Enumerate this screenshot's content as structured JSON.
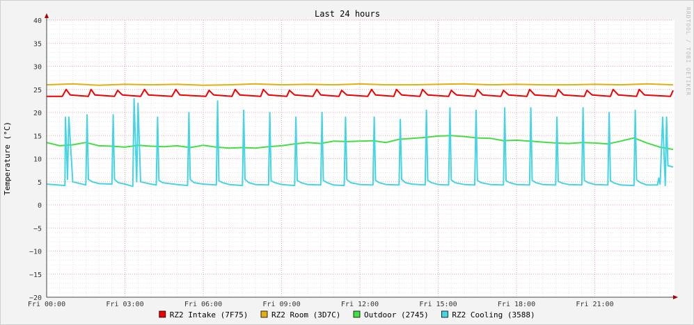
{
  "chart_data": {
    "type": "line",
    "title": "Last 24 hours",
    "ylabel": "Temperature (°C)",
    "watermark": "RRDTOOL / TOBI OETIKER",
    "ylim": [
      -20,
      40
    ],
    "yticks": [
      40,
      35,
      30,
      25,
      20,
      15,
      10,
      5,
      0,
      -5,
      -10,
      -15,
      -20
    ],
    "xlim_hours": [
      0,
      24
    ],
    "xticks": [
      {
        "hour": 0,
        "label": "Fri 00:00"
      },
      {
        "hour": 3,
        "label": "Fri 03:00"
      },
      {
        "hour": 6,
        "label": "Fri 06:00"
      },
      {
        "hour": 9,
        "label": "Fri 09:00"
      },
      {
        "hour": 12,
        "label": "Fri 12:00"
      },
      {
        "hour": 15,
        "label": "Fri 15:00"
      },
      {
        "hour": 18,
        "label": "Fri 18:00"
      },
      {
        "hour": 21,
        "label": "Fri 21:00"
      }
    ],
    "grid": true,
    "legend_position": "bottom",
    "series": [
      {
        "name": "RZ2 Intake (7F75)",
        "color": "#ee0000",
        "x": [
          0,
          0.6,
          0.75,
          0.9,
          1.6,
          1.7,
          1.85,
          2.6,
          2.72,
          2.9,
          3.6,
          3.75,
          3.9,
          4.8,
          4.95,
          5.1,
          6.1,
          6.22,
          6.4,
          7.1,
          7.22,
          7.4,
          8.2,
          8.3,
          8.5,
          9.2,
          9.3,
          9.5,
          10.2,
          10.35,
          10.5,
          11.2,
          11.3,
          11.5,
          12.3,
          12.45,
          12.6,
          13.3,
          13.4,
          13.6,
          14.3,
          14.4,
          14.6,
          15.4,
          15.5,
          15.7,
          16.4,
          16.5,
          16.7,
          17.4,
          17.5,
          17.7,
          18.4,
          18.5,
          18.7,
          19.5,
          19.6,
          19.8,
          20.6,
          20.7,
          20.9,
          21.6,
          21.7,
          21.9,
          22.6,
          22.7,
          22.9,
          23.9,
          24
        ],
        "y": [
          23.5,
          23.5,
          25,
          23.8,
          23.5,
          25,
          23.8,
          23.5,
          24.8,
          23.8,
          23.5,
          25,
          23.8,
          23.5,
          25,
          23.8,
          23.5,
          24.8,
          23.8,
          23.5,
          25,
          23.8,
          23.5,
          25,
          23.8,
          23.5,
          24.8,
          23.8,
          23.5,
          25,
          23.8,
          23.5,
          24.8,
          23.8,
          23.5,
          25,
          23.8,
          23.5,
          25,
          23.8,
          23.5,
          25,
          23.8,
          23.5,
          24.8,
          23.8,
          23.5,
          25,
          23.8,
          23.5,
          24.8,
          23.8,
          23.5,
          25,
          23.8,
          23.5,
          25,
          23.8,
          23.5,
          24.8,
          23.8,
          23.5,
          25,
          23.8,
          23.5,
          25,
          23.8,
          23.5,
          24.8
        ]
      },
      {
        "name": "RZ2 Room (3D7C)",
        "color": "#e0b010",
        "x": [
          0,
          1,
          2,
          3,
          4,
          5,
          6,
          7,
          8,
          9,
          10,
          11,
          12,
          13,
          14,
          15,
          16,
          17,
          18,
          19,
          20,
          21,
          22,
          23,
          24
        ],
        "y": [
          26,
          26.2,
          25.9,
          26.1,
          26,
          26.1,
          25.9,
          26,
          26.2,
          26,
          26.1,
          26,
          26.2,
          26,
          26,
          26.1,
          26.2,
          26,
          26.1,
          26,
          26,
          26.1,
          26,
          26.2,
          26
        ]
      },
      {
        "name": "Outdoor (2745)",
        "color": "#44dd44",
        "x": [
          0,
          0.5,
          1,
          1.5,
          2,
          2.5,
          3,
          3.5,
          4,
          4.5,
          5,
          5.5,
          6,
          6.5,
          7,
          7.5,
          8,
          8.5,
          9,
          9.5,
          10,
          10.5,
          11,
          11.5,
          12,
          12.5,
          13,
          13.5,
          14,
          14.5,
          15,
          15.5,
          16,
          16.5,
          17,
          17.5,
          18,
          18.5,
          19,
          19.5,
          20,
          20.5,
          21,
          21.5,
          22,
          22.5,
          23,
          23.5,
          24
        ],
        "y": [
          13.5,
          12.8,
          13,
          13.5,
          12.8,
          12.7,
          12.5,
          12.9,
          12.7,
          12.6,
          12.8,
          12.4,
          12.9,
          12.5,
          12.3,
          12.4,
          12.3,
          12.6,
          12.8,
          13.2,
          13.5,
          13.3,
          13.8,
          13.7,
          13.8,
          13.9,
          13.5,
          14.2,
          14.4,
          14.6,
          14.9,
          15,
          14.8,
          14.5,
          14.4,
          13.9,
          14,
          13.8,
          13.6,
          13.4,
          13.3,
          13.5,
          13.4,
          13.2,
          13.8,
          14.5,
          13.4,
          12.5,
          12
        ]
      },
      {
        "name": "RZ2 Cooling (3588)",
        "color": "#44d4e4",
        "x": [
          0,
          0.7,
          0.72,
          0.8,
          0.85,
          1,
          1.5,
          1.55,
          1.6,
          1.75,
          2,
          2.5,
          2.55,
          2.6,
          2.75,
          3,
          3.3,
          3.35,
          3.45,
          3.5,
          3.6,
          4,
          4.2,
          4.25,
          4.3,
          4.45,
          5,
          5.4,
          5.45,
          5.5,
          5.65,
          6,
          6.5,
          6.55,
          6.6,
          6.75,
          7,
          7.5,
          7.55,
          7.6,
          7.75,
          8,
          8.5,
          8.55,
          8.6,
          8.75,
          9,
          9.5,
          9.55,
          9.6,
          9.75,
          10,
          10.5,
          10.55,
          10.6,
          10.75,
          11,
          11.4,
          11.45,
          11.5,
          11.65,
          12,
          12.5,
          12.55,
          12.6,
          12.75,
          13,
          13.5,
          13.55,
          13.6,
          13.75,
          14,
          14.5,
          14.55,
          14.6,
          14.75,
          15,
          15.4,
          15.45,
          15.5,
          15.65,
          16,
          16.4,
          16.45,
          16.5,
          16.65,
          17,
          17.5,
          17.55,
          17.6,
          17.75,
          18,
          18.5,
          18.55,
          18.6,
          18.75,
          19,
          19.5,
          19.55,
          19.6,
          19.75,
          20,
          20.5,
          20.55,
          20.6,
          20.75,
          21,
          21.5,
          21.55,
          21.6,
          21.75,
          22,
          22.5,
          22.55,
          22.6,
          22.75,
          23,
          23.4,
          23.45,
          23.5,
          23.6,
          23.7,
          23.75,
          23.8,
          24
        ],
        "y": [
          4.5,
          4.2,
          19,
          5.5,
          19,
          5,
          4.3,
          19.5,
          5.5,
          5,
          4.6,
          4.5,
          19.5,
          5.5,
          4.8,
          4.5,
          4,
          23,
          5,
          22,
          5,
          4.5,
          4.3,
          19,
          5.3,
          4.8,
          4.4,
          4.2,
          20,
          5.5,
          4.8,
          4.5,
          4.3,
          22.5,
          5.2,
          4.8,
          4.4,
          4.2,
          20.5,
          5.5,
          4.8,
          4.4,
          4.3,
          20,
          5.2,
          4.8,
          4.4,
          4.2,
          19,
          5.3,
          4.8,
          4.4,
          4.3,
          20,
          5.3,
          4.8,
          4.3,
          4.2,
          19,
          5.5,
          4.8,
          4.4,
          4.3,
          19,
          5.3,
          4.8,
          4.4,
          4.3,
          18.5,
          5.5,
          4.8,
          4.5,
          4.3,
          20.5,
          5.3,
          4.8,
          4.4,
          4.3,
          21,
          5.4,
          4.8,
          4.4,
          4.3,
          20.5,
          5.3,
          4.8,
          4.4,
          4.3,
          21,
          5.2,
          4.8,
          4.4,
          4.3,
          21,
          5.3,
          4.8,
          4.4,
          4.3,
          19,
          5.1,
          4.7,
          4.4,
          4.3,
          21,
          5.3,
          4.8,
          4.4,
          4.3,
          20,
          5.2,
          4.7,
          4.3,
          4.2,
          20.5,
          5.4,
          4.8,
          4.3,
          4.3,
          5.8,
          4.5,
          19,
          4.2,
          19,
          8.5,
          8.2
        ]
      }
    ]
  }
}
